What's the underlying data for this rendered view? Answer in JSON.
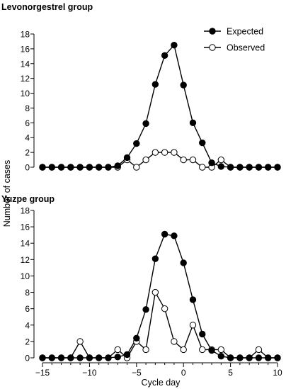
{
  "chart_data": [
    {
      "type": "line",
      "title": "Levonorgestrel group",
      "xlabel": "",
      "ylabel": "Number of cases",
      "x": [
        -15,
        -14,
        -13,
        -12,
        -11,
        -10,
        -9,
        -8,
        -7,
        -6,
        -5,
        -4,
        -3,
        -2,
        -1,
        0,
        1,
        2,
        3,
        4,
        5,
        6,
        7,
        8,
        9,
        10
      ],
      "xlim": [
        -15,
        10
      ],
      "ylim": [
        0,
        18
      ],
      "yticks": [
        0,
        2,
        4,
        6,
        8,
        10,
        12,
        14,
        16,
        18
      ],
      "ytick_labels": [
        "0",
        "2",
        "4",
        "6",
        "8",
        "10",
        "12",
        "14",
        "16",
        "18"
      ],
      "legend_position": "top-right",
      "series": [
        {
          "name": "Expected",
          "marker": "filled",
          "values": [
            0,
            0,
            0,
            0,
            0,
            0,
            0,
            0,
            0.2,
            1.3,
            3.2,
            5.9,
            11.2,
            15.1,
            16.5,
            11.1,
            6.0,
            3.3,
            0.6,
            0.1,
            0,
            0,
            0,
            0,
            0,
            0
          ]
        },
        {
          "name": "Observed",
          "marker": "open",
          "values": [
            0,
            0,
            0,
            0,
            0,
            0,
            0,
            0,
            0,
            1,
            0,
            1,
            2,
            2,
            2,
            1,
            1,
            0,
            0,
            1,
            0,
            0,
            0,
            0,
            0,
            0
          ]
        }
      ]
    },
    {
      "type": "line",
      "title": "Yuzpe group",
      "xlabel": "Cycle day",
      "ylabel": "",
      "x": [
        -15,
        -14,
        -13,
        -12,
        -11,
        -10,
        -9,
        -8,
        -7,
        -6,
        -5,
        -4,
        -3,
        -2,
        -1,
        0,
        1,
        2,
        3,
        4,
        5,
        6,
        7,
        8,
        9,
        10
      ],
      "xlim": [
        -15,
        10
      ],
      "ylim": [
        0,
        18
      ],
      "xticks": [
        -15,
        -10,
        -5,
        0,
        5,
        10
      ],
      "xtick_labels": [
        "−15",
        "−10",
        "−5",
        "0",
        "5",
        "10"
      ],
      "yticks": [
        0,
        2,
        4,
        6,
        8,
        10,
        12,
        14,
        16,
        18
      ],
      "ytick_labels": [
        "0",
        "2",
        "4",
        "6",
        "8",
        "10",
        "12",
        "14",
        "16",
        "18"
      ],
      "series": [
        {
          "name": "Expected",
          "marker": "filled",
          "values": [
            0,
            0,
            0,
            0,
            0,
            0,
            0,
            0,
            0.1,
            0.4,
            2.4,
            5.9,
            12.1,
            15.1,
            14.9,
            11.6,
            7.1,
            2.9,
            0.9,
            0.2,
            0,
            0,
            0,
            0,
            0,
            0
          ]
        },
        {
          "name": "Observed",
          "marker": "open",
          "values": [
            0,
            0,
            0,
            0,
            2,
            0,
            0,
            0,
            1,
            0,
            2,
            1,
            8,
            6,
            2,
            1,
            4,
            1,
            1,
            1,
            0,
            0,
            0,
            1,
            0,
            0
          ]
        }
      ]
    }
  ],
  "colors": {
    "line": "#000000",
    "open_fill": "#ffffff",
    "filled_fill": "#000000"
  }
}
